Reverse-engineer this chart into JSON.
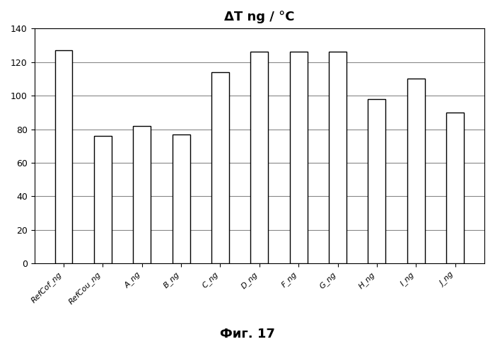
{
  "categories": [
    "RefCof_ng",
    "RefCou_ng",
    "A_ng",
    "B_ng",
    "C_ng",
    "D_ng",
    "F_ng",
    "G_ng",
    "H_ng",
    "I_ng",
    "J_ng"
  ],
  "values": [
    127,
    76,
    82,
    77,
    114,
    126,
    126,
    126,
    98,
    110,
    90
  ],
  "bar_color": "#ffffff",
  "bar_edgecolor": "#000000",
  "title": "ΔT ng / °C",
  "title_fontsize": 13,
  "ylim": [
    0,
    140
  ],
  "yticks": [
    0,
    20,
    40,
    60,
    80,
    100,
    120,
    140
  ],
  "grid_color": "#888888",
  "background_color": "#ffffff",
  "tick_label_fontsize": 8,
  "ytick_fontsize": 9,
  "caption": "Фиг. 17",
  "caption_fontsize": 13,
  "bar_width": 0.45
}
